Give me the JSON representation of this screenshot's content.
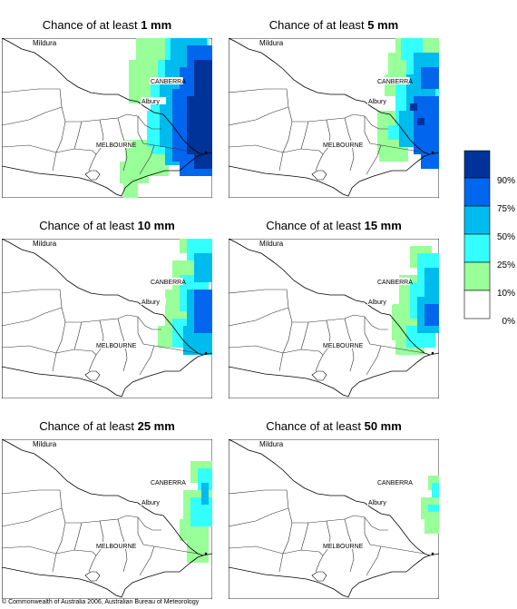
{
  "title_prefix": "Chance of at least",
  "panels": [
    {
      "amount": "1 mm"
    },
    {
      "amount": "5 mm"
    },
    {
      "amount": "10 mm"
    },
    {
      "amount": "15 mm"
    },
    {
      "amount": "25 mm"
    },
    {
      "amount": "50 mm"
    }
  ],
  "places": {
    "mildura": "Mildura",
    "canberra": "CANBERRA",
    "albury": "Albury",
    "melbourne": "MELBOURNE"
  },
  "legend": {
    "labels": [
      "90%",
      "75%",
      "50%",
      "25%",
      "10%",
      "0%"
    ],
    "colors": {
      "90": "#003399",
      "75": "#0066ee",
      "50": "#00bbee",
      "25": "#33ffff",
      "10": "#99ff99",
      "0": "#ffffff"
    }
  },
  "copyright": "© Commonwealth of Australia 2006, Australian Bureau of Meteorology"
}
